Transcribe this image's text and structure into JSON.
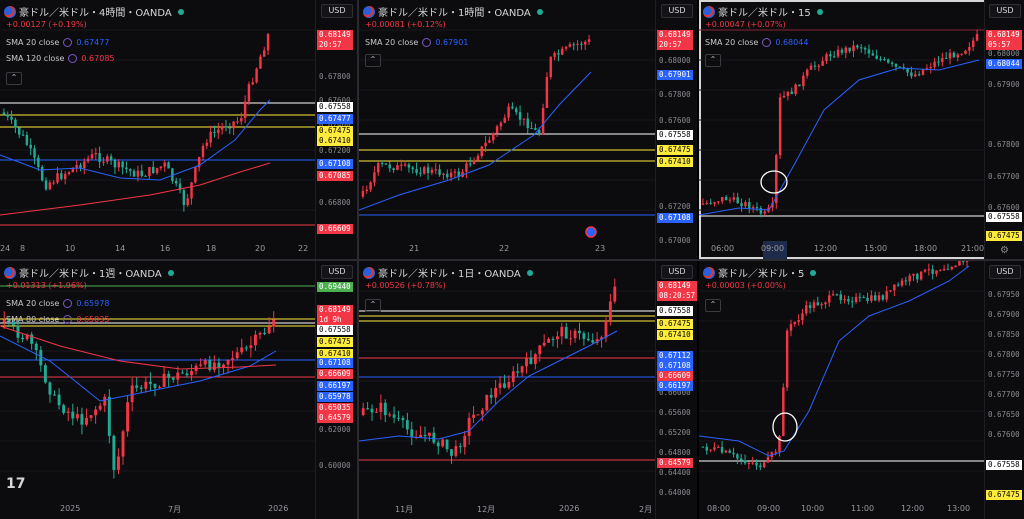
{
  "panels": [
    {
      "title": "豪ドル／米ドル・4時間・OANDA",
      "change": "+0.00127 (+0.19%)",
      "smas": [
        {
          "label": "SMA 20 close",
          "value": "0.67477",
          "color": "#2962ff"
        },
        {
          "label": "SMA 120 close",
          "value": "0.67085",
          "color": "#f23645"
        }
      ],
      "currency": "USD",
      "price_ticks": [
        "0.67800",
        "0.67600",
        "0.67400",
        "0.67200",
        "0.66800"
      ],
      "time_ticks": [
        "8",
        "10",
        "14",
        "16",
        "18",
        "20",
        "22",
        "24"
      ],
      "tags": [
        {
          "text": "0.68149",
          "sub": "20:57",
          "bg": "#f23645",
          "fg": "#ffffff"
        },
        {
          "text": "0.67558",
          "bg": "#ffffff",
          "fg": "#000000"
        },
        {
          "text": "0.67477",
          "bg": "#2962ff",
          "fg": "#ffffff"
        },
        {
          "text": "0.67475",
          "bg": "#ffeb3b",
          "fg": "#000000"
        },
        {
          "text": "0.67410",
          "bg": "#ffeb3b",
          "fg": "#000000"
        },
        {
          "text": "0.67108",
          "bg": "#2962ff",
          "fg": "#ffffff"
        },
        {
          "text": "0.67085",
          "bg": "#f23645",
          "fg": "#ffffff"
        },
        {
          "text": "0.66609",
          "bg": "#f23645",
          "fg": "#ffffff"
        }
      ]
    },
    {
      "title": "豪ドル／米ドル・1時間・OANDA",
      "change": "+0.00081 (+0.12%)",
      "smas": [
        {
          "label": "SMA 20 close",
          "value": "0.67901",
          "color": "#2962ff"
        }
      ],
      "currency": "USD",
      "price_ticks": [
        "0.68000",
        "0.67800",
        "0.67600",
        "0.67200",
        "0.67000"
      ],
      "time_ticks": [
        "21",
        "22",
        "23"
      ],
      "tags": [
        {
          "text": "0.68149",
          "sub": "20:57",
          "bg": "#f23645",
          "fg": "#ffffff"
        },
        {
          "text": "0.67901",
          "bg": "#2962ff",
          "fg": "#ffffff"
        },
        {
          "text": "0.67558",
          "bg": "#ffffff",
          "fg": "#000000"
        },
        {
          "text": "0.67475",
          "bg": "#ffeb3b",
          "fg": "#000000"
        },
        {
          "text": "0.67410",
          "bg": "#ffeb3b",
          "fg": "#000000"
        },
        {
          "text": "0.67108",
          "bg": "#2962ff",
          "fg": "#ffffff"
        }
      ]
    },
    {
      "title": "豪ドル／米ドル・15",
      "change": "+0.00047 (+0.07%)",
      "smas": [
        {
          "label": "SMA 20 close",
          "value": "0.68044",
          "color": "#2962ff"
        }
      ],
      "currency": "USD",
      "price_ticks": [
        "0.68000",
        "0.67900",
        "0.67800",
        "0.67700",
        "0.67600"
      ],
      "time_ticks": [
        "06:00",
        "09:00",
        "12:00",
        "15:00",
        "18:00",
        "21:00"
      ],
      "tags": [
        {
          "text": "0.68149",
          "sub": "05:57",
          "bg": "#f23645",
          "fg": "#ffffff"
        },
        {
          "text": "0.68044",
          "bg": "#2962ff",
          "fg": "#ffffff"
        },
        {
          "text": "0.67558",
          "bg": "#ffffff",
          "fg": "#000000"
        },
        {
          "text": "0.67475",
          "bg": "#ffeb3b",
          "fg": "#000000"
        }
      ]
    },
    {
      "title": "豪ドル／米ドル・1週・OANDA",
      "change": "+0.01313 (+1.96%)",
      "smas": [
        {
          "label": "SMA 20 close",
          "value": "0.65978",
          "color": "#2962ff"
        },
        {
          "label": "SMA 80 close",
          "value": "0.65035",
          "color": "#f23645"
        }
      ],
      "currency": "USD",
      "price_ticks": [
        "0.62000",
        "0.60000"
      ],
      "time_ticks": [
        "2025",
        "7月",
        "2026"
      ],
      "tags": [
        {
          "text": "0.69440",
          "bg": "#4caf50",
          "fg": "#ffffff"
        },
        {
          "text": "0.68149",
          "sub": "1d 9h",
          "bg": "#f23645",
          "fg": "#ffffff"
        },
        {
          "text": "0.67558",
          "bg": "#ffffff",
          "fg": "#000000"
        },
        {
          "text": "0.67475",
          "bg": "#ffeb3b",
          "fg": "#000000"
        },
        {
          "text": "0.67410",
          "bg": "#ffeb3b",
          "fg": "#000000"
        },
        {
          "text": "0.67108",
          "bg": "#2962ff",
          "fg": "#ffffff"
        },
        {
          "text": "0.66609",
          "bg": "#f23645",
          "fg": "#ffffff"
        },
        {
          "text": "0.66197",
          "bg": "#2962ff",
          "fg": "#ffffff"
        },
        {
          "text": "0.65978",
          "bg": "#2962ff",
          "fg": "#ffffff"
        },
        {
          "text": "0.65035",
          "bg": "#f23645",
          "fg": "#ffffff"
        },
        {
          "text": "0.64579",
          "bg": "#f23645",
          "fg": "#ffffff"
        }
      ]
    },
    {
      "title": "豪ドル／米ドル・1日・OANDA",
      "change": "+0.00526 (+0.78%)",
      "smas": [],
      "currency": "USD",
      "price_ticks": [
        "0.66000",
        "0.65600",
        "0.65200",
        "0.64800",
        "0.64400",
        "0.64000"
      ],
      "time_ticks": [
        "11月",
        "12月",
        "2026",
        "2月"
      ],
      "tags": [
        {
          "text": "0.68149",
          "sub": "08:20:57",
          "bg": "#f23645",
          "fg": "#ffffff"
        },
        {
          "text": "0.67558",
          "bg": "#ffffff",
          "fg": "#000000"
        },
        {
          "text": "0.67475",
          "bg": "#ffeb3b",
          "fg": "#000000"
        },
        {
          "text": "0.67410",
          "bg": "#ffeb3b",
          "fg": "#000000"
        },
        {
          "text": "0.67112",
          "bg": "#2962ff",
          "fg": "#ffffff"
        },
        {
          "text": "0.67108",
          "bg": "#2962ff",
          "fg": "#ffffff"
        },
        {
          "text": "0.66609",
          "bg": "#f23645",
          "fg": "#ffffff"
        },
        {
          "text": "0.66197",
          "bg": "#2962ff",
          "fg": "#ffffff"
        },
        {
          "text": "0.64579",
          "bg": "#f23645",
          "fg": "#ffffff"
        }
      ]
    },
    {
      "title": "豪ドル／米ドル・5",
      "change": "+0.00003 (+0.00%)",
      "smas": [],
      "currency": "USD",
      "price_ticks": [
        "0.67950",
        "0.67900",
        "0.67850",
        "0.67800",
        "0.67750",
        "0.67700",
        "0.67650",
        "0.67600"
      ],
      "time_ticks": [
        "08:00",
        "09:00",
        "10:00",
        "11:00",
        "12:00",
        "13:00"
      ],
      "tags": [
        {
          "text": "0.67558",
          "bg": "#ffffff",
          "fg": "#000000"
        },
        {
          "text": "0.67475",
          "bg": "#ffeb3b",
          "fg": "#000000"
        }
      ]
    }
  ]
}
